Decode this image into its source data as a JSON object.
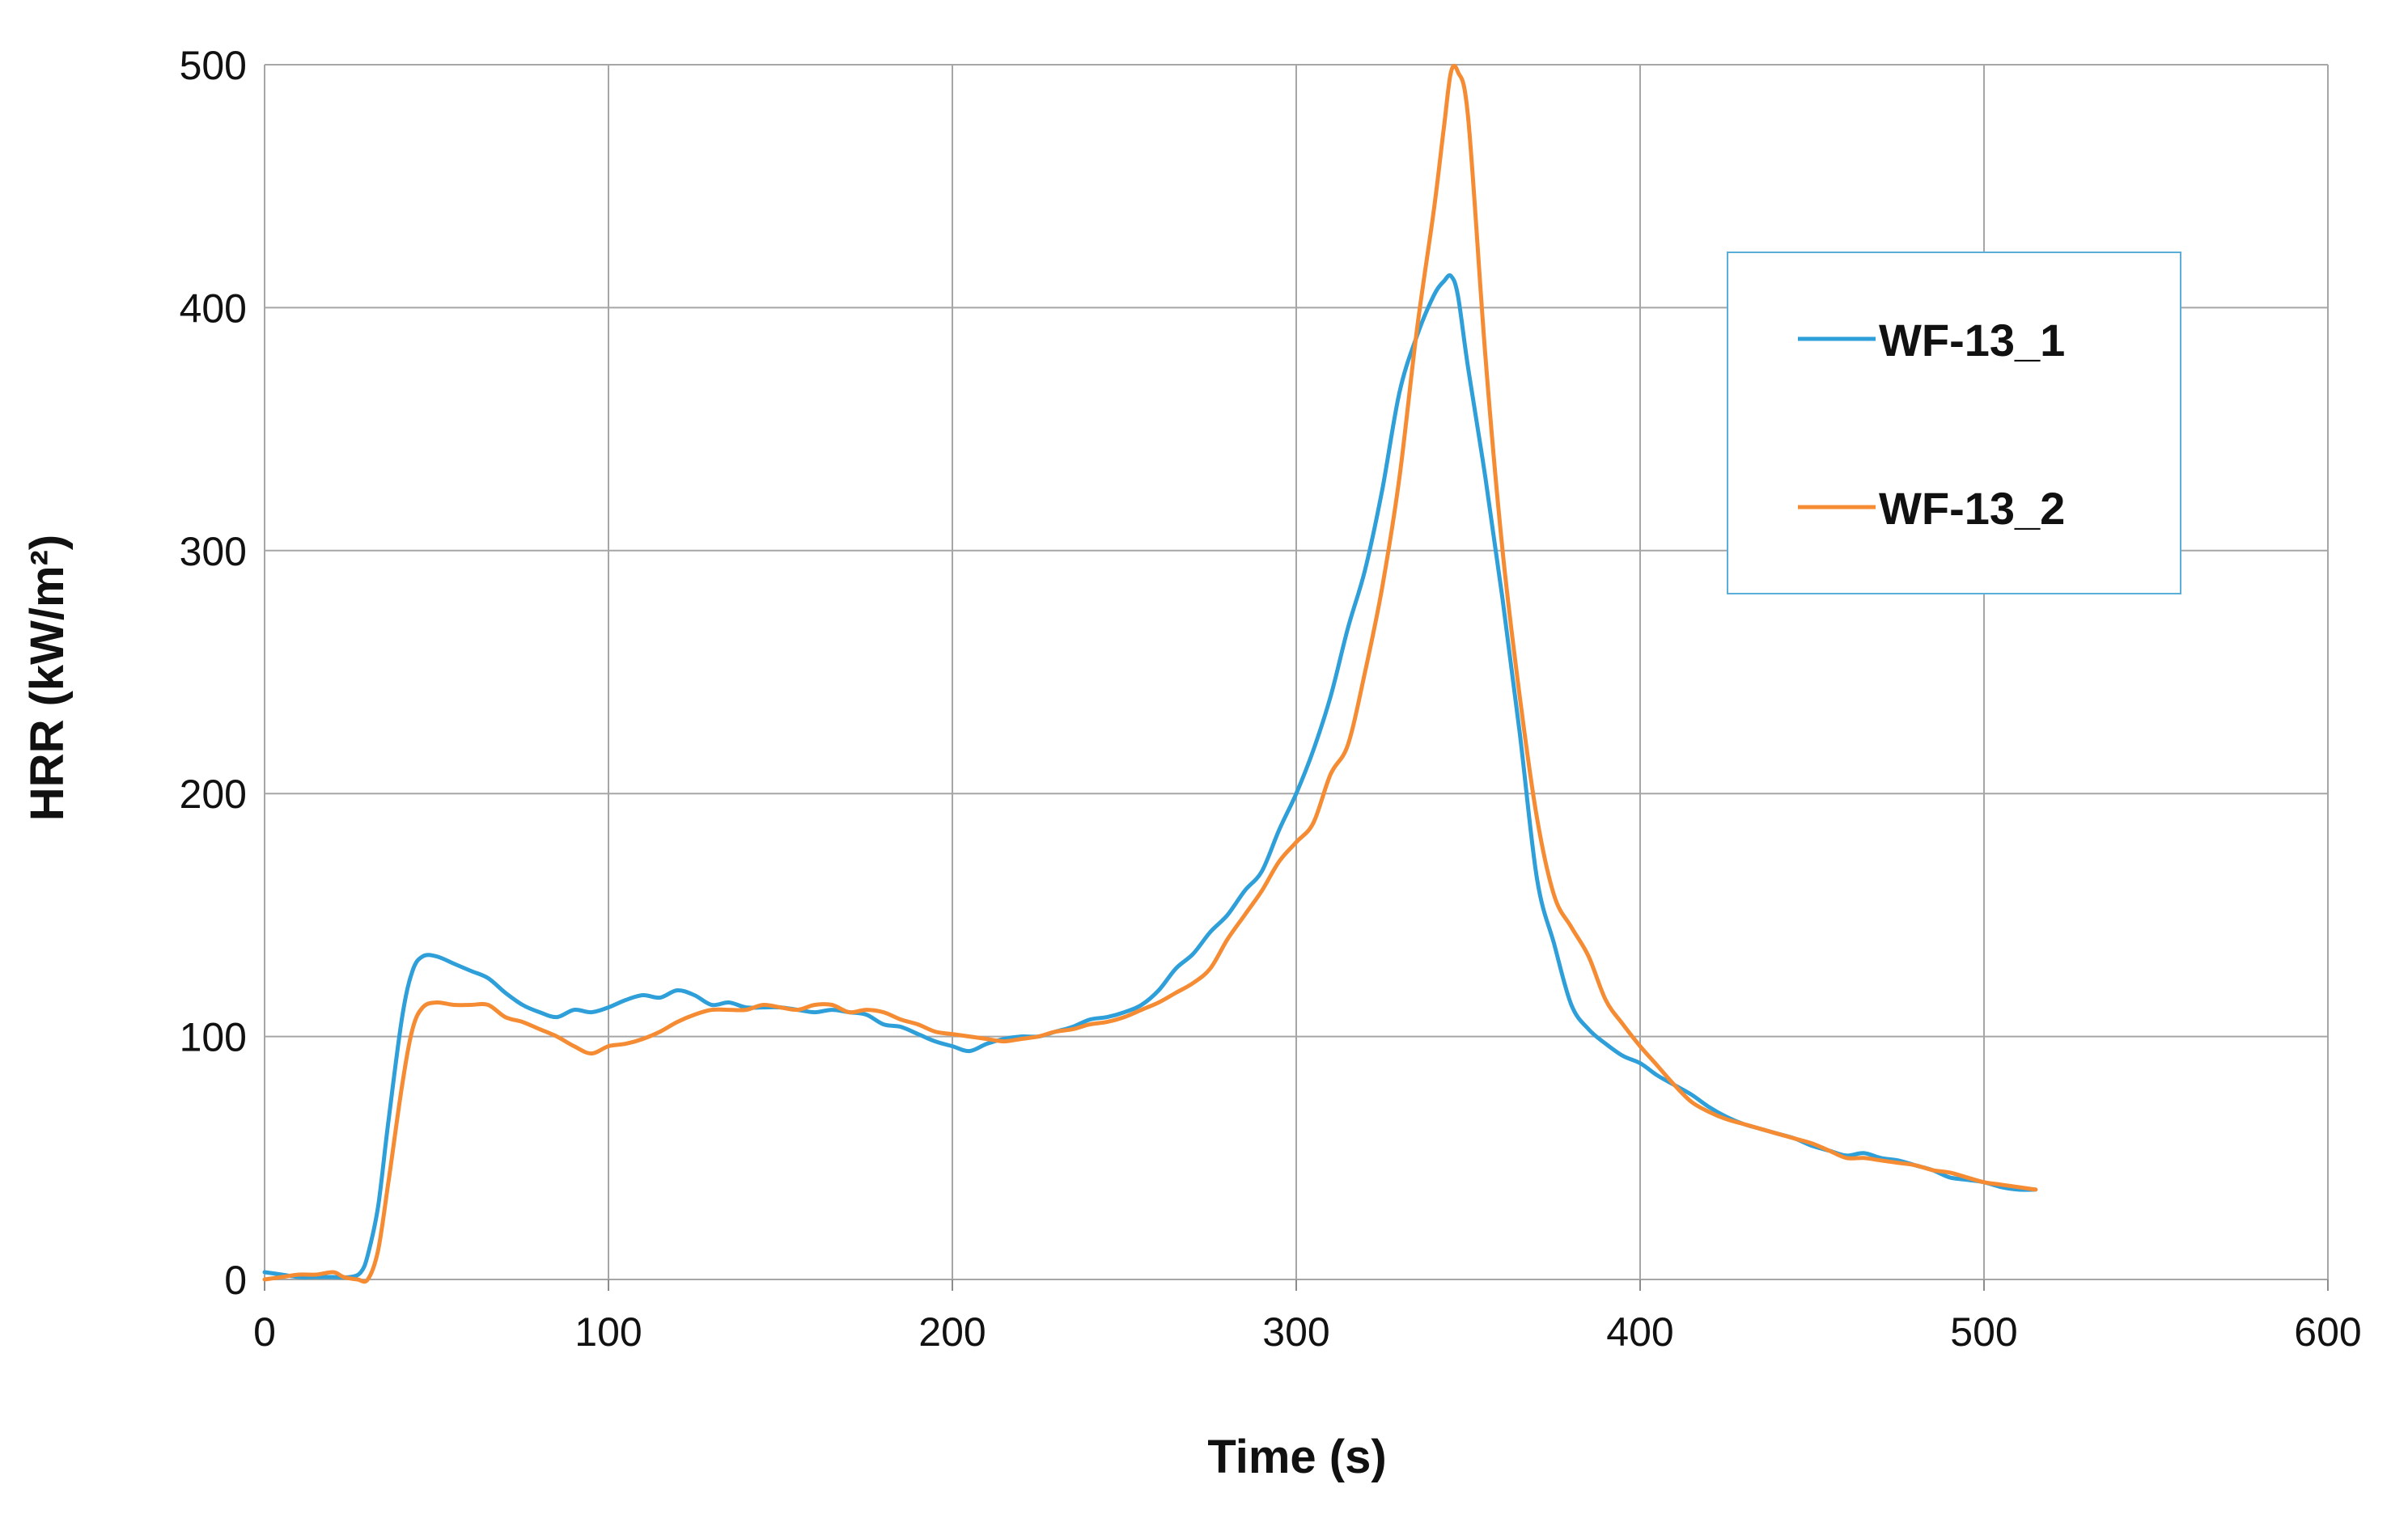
{
  "chart_data": {
    "type": "line",
    "title": "",
    "xlabel": "Time (s)",
    "ylabel": "HRR (kW/m²)",
    "xlim": [
      0,
      600
    ],
    "ylim": [
      0,
      500
    ],
    "xticks": [
      0,
      100,
      200,
      300,
      400,
      500,
      600
    ],
    "yticks": [
      0,
      100,
      200,
      300,
      400,
      500
    ],
    "xtick_labels": [
      "0",
      "100",
      "200",
      "300",
      "400",
      "500",
      "600"
    ],
    "ytick_labels": [
      "0",
      "100",
      "200",
      "300",
      "400",
      "500"
    ],
    "grid": true,
    "legend_position": "upper-right",
    "series": [
      {
        "name": "WF-13_1",
        "color": "#2e9fd8",
        "x": [
          0,
          5,
          10,
          15,
          20,
          25,
          28,
          30,
          33,
          36,
          40,
          43,
          46,
          50,
          55,
          60,
          65,
          70,
          75,
          80,
          85,
          90,
          95,
          100,
          105,
          110,
          115,
          120,
          125,
          130,
          135,
          140,
          145,
          150,
          155,
          160,
          165,
          170,
          175,
          180,
          185,
          190,
          195,
          200,
          205,
          210,
          215,
          220,
          225,
          230,
          235,
          240,
          245,
          250,
          255,
          260,
          265,
          270,
          275,
          280,
          285,
          290,
          295,
          300,
          305,
          310,
          315,
          320,
          325,
          330,
          335,
          340,
          343,
          345,
          347,
          350,
          355,
          360,
          365,
          370,
          375,
          380,
          385,
          390,
          395,
          400,
          405,
          410,
          415,
          420,
          425,
          430,
          435,
          440,
          445,
          450,
          455,
          460,
          465,
          470,
          475,
          480,
          485,
          490,
          495,
          500,
          505,
          510,
          515
        ],
        "y": [
          3,
          2,
          1,
          1,
          1,
          1,
          3,
          10,
          30,
          65,
          108,
          127,
          133,
          133,
          130,
          127,
          124,
          118,
          113,
          110,
          108,
          111,
          110,
          112,
          115,
          117,
          116,
          119,
          117,
          113,
          114,
          112,
          112,
          112,
          111,
          110,
          111,
          110,
          109,
          105,
          104,
          101,
          98,
          96,
          94,
          97,
          99,
          100,
          100,
          102,
          104,
          107,
          108,
          110,
          113,
          119,
          128,
          134,
          143,
          150,
          160,
          168,
          185,
          200,
          218,
          240,
          268,
          292,
          325,
          365,
          388,
          405,
          411,
          413,
          405,
          375,
          330,
          280,
          225,
          165,
          138,
          113,
          103,
          97,
          92,
          89,
          84,
          80,
          76,
          71,
          67,
          64,
          62,
          60,
          58,
          55,
          53,
          51,
          52,
          50,
          49,
          47,
          45,
          42,
          41,
          40,
          38,
          37,
          37
        ]
      },
      {
        "name": "WF-13_2",
        "color": "#f58b33",
        "x": [
          0,
          5,
          10,
          15,
          20,
          23,
          27,
          30,
          33,
          36,
          40,
          43,
          46,
          50,
          55,
          60,
          65,
          70,
          75,
          80,
          85,
          90,
          95,
          100,
          105,
          110,
          115,
          120,
          125,
          130,
          135,
          140,
          145,
          150,
          155,
          160,
          165,
          170,
          175,
          180,
          185,
          190,
          195,
          200,
          205,
          210,
          215,
          220,
          225,
          230,
          235,
          240,
          245,
          250,
          255,
          260,
          265,
          270,
          275,
          280,
          285,
          290,
          295,
          300,
          305,
          310,
          315,
          320,
          325,
          330,
          335,
          340,
          343,
          345,
          347,
          350,
          355,
          360,
          365,
          370,
          375,
          380,
          385,
          390,
          395,
          400,
          405,
          410,
          415,
          420,
          425,
          430,
          435,
          440,
          445,
          450,
          455,
          460,
          465,
          470,
          475,
          480,
          485,
          490,
          495,
          500,
          505,
          510,
          515
        ],
        "y": [
          0,
          1,
          2,
          2,
          3,
          1,
          0,
          0,
          12,
          40,
          80,
          103,
          112,
          114,
          113,
          113,
          113,
          108,
          106,
          103,
          100,
          96,
          93,
          96,
          97,
          99,
          102,
          106,
          109,
          111,
          111,
          111,
          113,
          112,
          111,
          113,
          113,
          110,
          111,
          110,
          107,
          105,
          102,
          101,
          100,
          99,
          98,
          99,
          100,
          102,
          103,
          105,
          106,
          108,
          111,
          114,
          118,
          122,
          128,
          140,
          150,
          160,
          172,
          180,
          188,
          208,
          220,
          250,
          285,
          330,
          390,
          440,
          475,
          497,
          497,
          478,
          380,
          300,
          240,
          190,
          158,
          145,
          133,
          115,
          105,
          96,
          88,
          80,
          73,
          69,
          66,
          64,
          62,
          60,
          58,
          56,
          53,
          50,
          50,
          49,
          48,
          47,
          45,
          44,
          42,
          40,
          39,
          38,
          37
        ]
      }
    ]
  }
}
